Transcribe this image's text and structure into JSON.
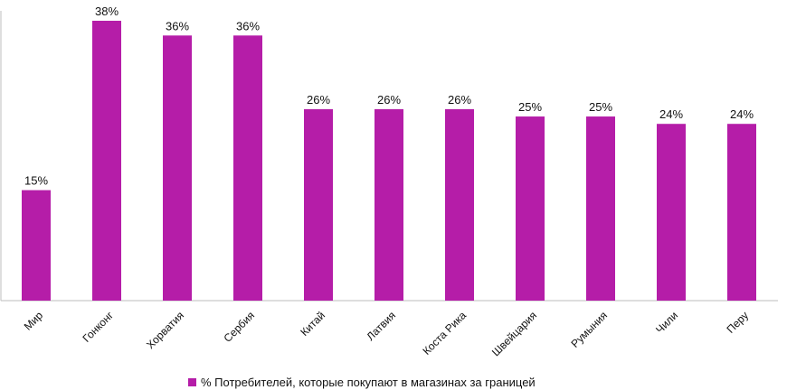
{
  "chart_data": {
    "type": "bar",
    "categories": [
      "Мир",
      "Гонконг",
      "Хорватия",
      "Сербия",
      "Китай",
      "Латвия",
      "Коста Рика",
      "Швейцария",
      "Румыния",
      "Чили",
      "Перу"
    ],
    "values": [
      15,
      38,
      36,
      36,
      26,
      26,
      26,
      25,
      25,
      24,
      24
    ],
    "data_labels": [
      "15%",
      "38%",
      "36%",
      "36%",
      "26%",
      "26%",
      "26%",
      "25%",
      "25%",
      "24%",
      "24%"
    ],
    "series": [
      {
        "name": "% Потребителей, которые покупают в магазинах за границей",
        "values": [
          15,
          38,
          36,
          36,
          26,
          26,
          26,
          25,
          25,
          24,
          24
        ]
      }
    ],
    "ylim": [
      0,
      38
    ],
    "grid": false,
    "legend_position": "bottom",
    "bar_color": "#B51DA8"
  }
}
